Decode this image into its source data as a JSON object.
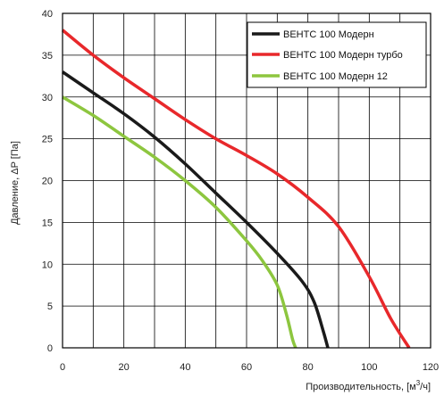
{
  "chart_data": {
    "type": "line",
    "xlabel": "Производительность, [м",
    "xlabel_sup": "3",
    "xlabel_suffix": "/ч]",
    "ylabel": "Давление, ΔP [Па]",
    "xlim": [
      0,
      120
    ],
    "ylim": [
      0,
      40
    ],
    "x_ticks": [
      0,
      20,
      40,
      60,
      80,
      100,
      120
    ],
    "y_ticks": [
      0,
      5,
      10,
      15,
      20,
      25,
      30,
      35,
      40
    ],
    "grid": true,
    "legend_position": "top-right",
    "series": [
      {
        "name": "ВЕНТС 100 Модерн",
        "color": "#1a1a1a",
        "points": [
          [
            0,
            33
          ],
          [
            10,
            30.5
          ],
          [
            20,
            28
          ],
          [
            30,
            25.2
          ],
          [
            40,
            22
          ],
          [
            50,
            18.5
          ],
          [
            60,
            15
          ],
          [
            70,
            11.3
          ],
          [
            78,
            8
          ],
          [
            82,
            5.5
          ],
          [
            85,
            2
          ],
          [
            86.5,
            0
          ]
        ]
      },
      {
        "name": "ВЕНТС 100 Модерн турбо",
        "color": "#e8282b",
        "points": [
          [
            0,
            38
          ],
          [
            10,
            35
          ],
          [
            20,
            32.3
          ],
          [
            30,
            29.8
          ],
          [
            40,
            27.3
          ],
          [
            50,
            25
          ],
          [
            60,
            23
          ],
          [
            70,
            20.8
          ],
          [
            80,
            18
          ],
          [
            90,
            14.5
          ],
          [
            100,
            8.5
          ],
          [
            107,
            3.5
          ],
          [
            113,
            0
          ]
        ]
      },
      {
        "name": "ВЕНТС 100 Модерн 12",
        "color": "#8dc63f",
        "points": [
          [
            0,
            30
          ],
          [
            10,
            27.8
          ],
          [
            20,
            25.3
          ],
          [
            30,
            22.8
          ],
          [
            40,
            20
          ],
          [
            50,
            16.8
          ],
          [
            60,
            12.8
          ],
          [
            65,
            10.5
          ],
          [
            70,
            7.5
          ],
          [
            73,
            4
          ],
          [
            75,
            1
          ],
          [
            76,
            0
          ]
        ]
      }
    ]
  }
}
